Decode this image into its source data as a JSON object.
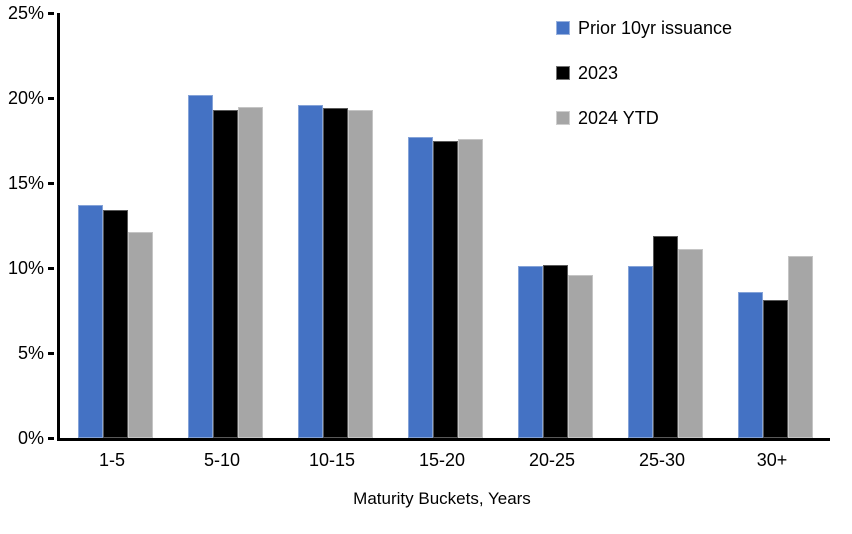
{
  "chart_data": {
    "type": "bar",
    "title": "",
    "xlabel": "Maturity Buckets, Years",
    "ylabel": "",
    "ylim": [
      0,
      25
    ],
    "yticks": [
      0,
      5,
      10,
      15,
      20,
      25
    ],
    "ytick_labels": [
      "0%",
      "5%",
      "10%",
      "15%",
      "20%",
      "25%"
    ],
    "categories": [
      "1-5",
      "5-10",
      "10-15",
      "15-20",
      "20-25",
      "25-30",
      "30+"
    ],
    "series": [
      {
        "name": "Prior 10yr issuance",
        "color": "#4472C4",
        "values": [
          13.7,
          20.2,
          19.6,
          17.7,
          10.1,
          10.1,
          8.6
        ]
      },
      {
        "name": "2023",
        "color": "#000000",
        "values": [
          13.4,
          19.3,
          19.4,
          17.5,
          10.2,
          11.9,
          8.1
        ]
      },
      {
        "name": "2024 YTD",
        "color": "#A6A6A6",
        "values": [
          12.1,
          19.5,
          19.3,
          17.6,
          9.6,
          11.1,
          10.7
        ]
      }
    ],
    "legend_position": "top-right",
    "grid": false,
    "axis_color": "#000000"
  }
}
